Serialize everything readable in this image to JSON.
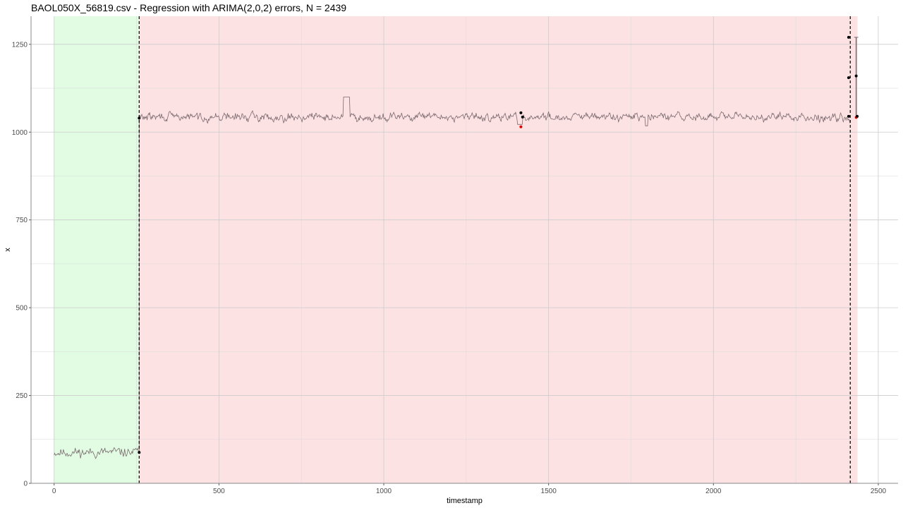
{
  "chart_data": {
    "type": "line",
    "title": "BAOL050X_56819.csv - Regression with ARIMA(2,0,2) errors, N = 2439",
    "xlabel": "timestamp",
    "ylabel": "x",
    "xlim": [
      -70,
      2560
    ],
    "ylim": [
      0,
      1330
    ],
    "x_ticks": [
      0,
      500,
      1000,
      1500,
      2000,
      2500
    ],
    "x_tick_labels": [
      "0",
      "500",
      "1000",
      "1500",
      "2000",
      "2500"
    ],
    "y_ticks": [
      0,
      250,
      500,
      750,
      1000,
      1250
    ],
    "y_tick_labels": [
      "0",
      "250",
      "500",
      "750",
      "1000",
      "1250"
    ],
    "grid": true,
    "regions": [
      {
        "x_start": 0,
        "x_end": 258,
        "fill": "#e1fce3"
      },
      {
        "x_start": 258,
        "x_end": 2437,
        "fill": "#fde2e4"
      }
    ],
    "vlines": [
      258,
      2415
    ],
    "series": [
      {
        "style": "line",
        "color": "#7a6a6e",
        "segments": [
          {
            "x_start": 0,
            "x_end": 258,
            "base": 88,
            "amplitude": 13,
            "seed": 11
          },
          {
            "x_start": 258,
            "x_end": 2415,
            "base": 1043,
            "amplitude": 11,
            "seed": 29
          }
        ],
        "overrides": [
          {
            "x_start": 878,
            "x_end": 897,
            "value": 1100
          },
          {
            "x_start": 1405,
            "x_end": 1420,
            "value": 1022
          },
          {
            "x_start": 1793,
            "x_end": 1800,
            "value": 1018
          },
          {
            "x_start": 2415,
            "x_end": 2437,
            "value": 1045
          }
        ]
      }
    ],
    "intervals": [
      {
        "x": 2433,
        "low": 1040,
        "high": 1270,
        "color": "#7a6a6e"
      }
    ],
    "points": [
      {
        "x": 258,
        "y": 1040,
        "color": "#000000"
      },
      {
        "x": 258,
        "y": 88,
        "color": "#000000"
      },
      {
        "x": 1416,
        "y": 1055,
        "color": "#000000"
      },
      {
        "x": 1421,
        "y": 1043,
        "color": "#000000"
      },
      {
        "x": 1416,
        "y": 1015,
        "color": "#e00000"
      },
      {
        "x": 2410,
        "y": 1270,
        "color": "#000000"
      },
      {
        "x": 2410,
        "y": 1155,
        "color": "#000000"
      },
      {
        "x": 2410,
        "y": 1045,
        "color": "#000000"
      },
      {
        "x": 2433,
        "y": 1160,
        "color": "#000000"
      },
      {
        "x": 2433,
        "y": 1042,
        "color": "#e00000"
      },
      {
        "x": 2436,
        "y": 1045,
        "color": "#000000"
      }
    ]
  }
}
